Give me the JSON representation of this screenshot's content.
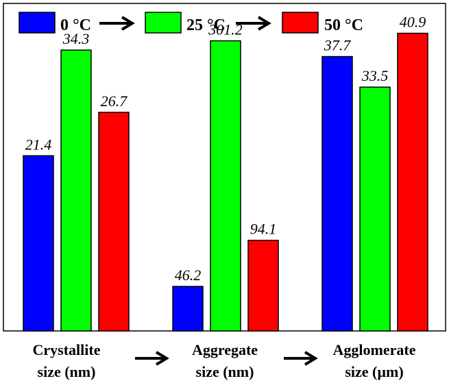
{
  "chart_data": {
    "type": "bar",
    "title": "",
    "xlabel": "",
    "ylabel": "",
    "grid": false,
    "legend_placement": "top",
    "legend_arrows": true,
    "category_arrows": true,
    "categories": [
      [
        "Crystallite",
        "size (nm)"
      ],
      [
        "Aggregate",
        "size (nm)"
      ],
      [
        "Agglomerate",
        "size (µm)"
      ]
    ],
    "series": [
      {
        "name": "0 °C",
        "color": "#0000ff",
        "values": [
          21.4,
          46.2,
          37.7
        ]
      },
      {
        "name": "25 °C",
        "color": "#00ff00",
        "values": [
          34.3,
          301.2,
          33.5
        ]
      },
      {
        "name": "50 °C",
        "color": "#ff0000",
        "values": [
          26.7,
          94.1,
          40.9
        ]
      }
    ],
    "group_scales": [
      {
        "ymin": 0,
        "ymax": 40.0
      },
      {
        "ymin": 0,
        "ymax": 340.0
      },
      {
        "ymin": 0,
        "ymax": 45.0
      }
    ],
    "data_labels": [
      [
        "21.4",
        "34.3",
        "26.7"
      ],
      [
        "46.2",
        "301.2",
        "94.1"
      ],
      [
        "37.7",
        "33.5",
        "40.9"
      ]
    ]
  }
}
